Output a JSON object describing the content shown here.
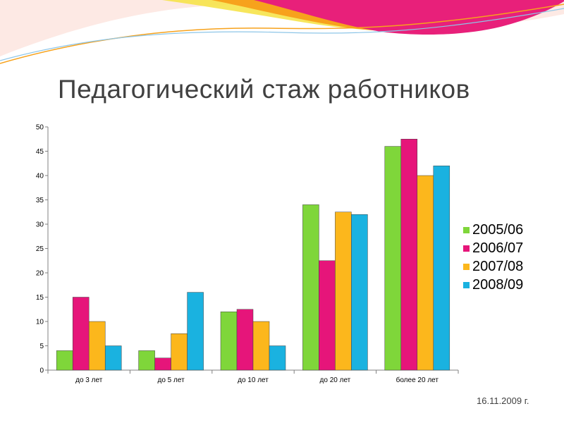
{
  "slide": {
    "title": "Педагогический стаж работников",
    "date": "16.11.2009 г."
  },
  "colors": {
    "decor_pink": "#e8207a",
    "decor_orange": "#f7a21c",
    "decor_yellow": "#f6e34a",
    "decor_light": "#f9d6a0"
  },
  "chart_data": {
    "type": "bar",
    "title": "Педагогический стаж работников",
    "categories": [
      "до 3 лет",
      "до 5 лет",
      "до 10 лет",
      "до 20 лет",
      "более 20 лет"
    ],
    "series": [
      {
        "name": "2005/06",
        "color": "#7fd63a",
        "values": [
          4,
          4,
          12,
          34,
          46
        ]
      },
      {
        "name": "2006/07",
        "color": "#e6157a",
        "values": [
          15,
          2.5,
          12.5,
          22.5,
          47.5
        ]
      },
      {
        "name": "2007/08",
        "color": "#fcb71c",
        "values": [
          10,
          7.5,
          10,
          32.5,
          40
        ]
      },
      {
        "name": "2008/09",
        "color": "#1ab2e0",
        "values": [
          5,
          16,
          5,
          32,
          42
        ]
      }
    ],
    "yticks": [
      0,
      5,
      10,
      15,
      20,
      25,
      30,
      35,
      40,
      45,
      50
    ],
    "ylim": [
      0,
      50
    ],
    "xlabel": "",
    "ylabel": "",
    "grid": false,
    "legend": "right"
  }
}
